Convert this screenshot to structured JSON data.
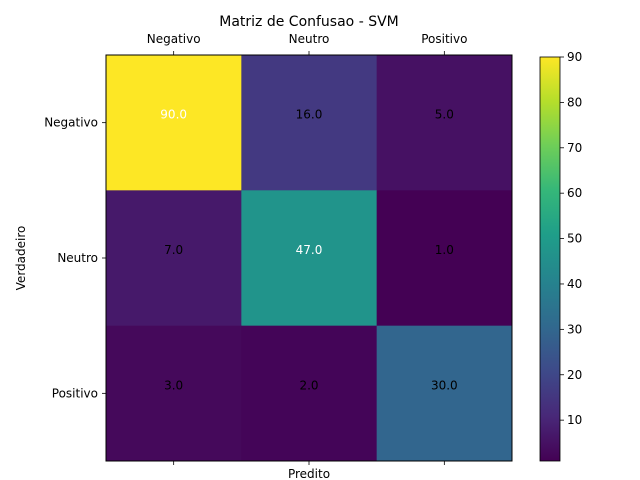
{
  "chart_data": {
    "type": "heatmap",
    "title": "Matriz de Confusao - SVM",
    "xlabel": "Predito",
    "ylabel": "Verdadeiro",
    "x_categories": [
      "Negativo",
      "Neutro",
      "Positivo"
    ],
    "y_categories": [
      "Negativo",
      "Neutro",
      "Positivo"
    ],
    "values": [
      [
        90.0,
        16.0,
        5.0
      ],
      [
        7.0,
        47.0,
        1.0
      ],
      [
        3.0,
        2.0,
        30.0
      ]
    ],
    "value_labels": [
      [
        "90.0",
        "16.0",
        "5.0"
      ],
      [
        "7.0",
        "47.0",
        "1.0"
      ],
      [
        "3.0",
        "2.0",
        "30.0"
      ]
    ],
    "colormap": "viridis",
    "vmin": 1,
    "vmax": 90,
    "colorbar_ticks": [
      10,
      20,
      30,
      40,
      50,
      60,
      70,
      80,
      90
    ],
    "colorbar_tick_labels": [
      "10",
      "20",
      "30",
      "40",
      "50",
      "60",
      "70",
      "80",
      "90"
    ],
    "x_tick_position": "top",
    "grid": false,
    "legend": "colorbar-right"
  }
}
